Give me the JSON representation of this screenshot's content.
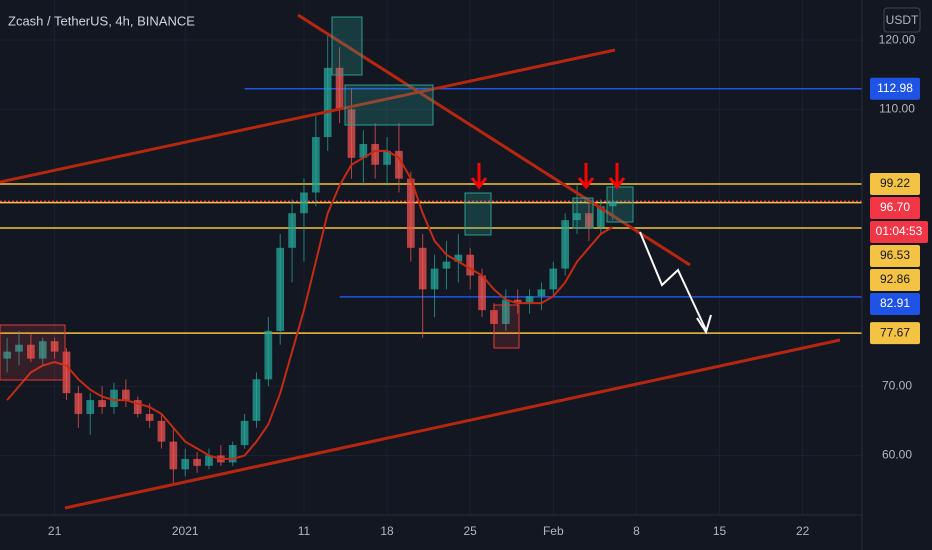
{
  "header": {
    "title": "Zcash / TetherUS, 4h, BINANCE",
    "currency": "USDT"
  },
  "chart_data": {
    "type": "candlestick",
    "xlim": [
      -4.6,
      68.0
    ],
    "ylim": [
      51.4,
      125.8
    ],
    "xticks": [
      {
        "value": 0,
        "label": "21"
      },
      {
        "value": 11,
        "label": "2021"
      },
      {
        "value": 21,
        "label": "11"
      },
      {
        "value": 28,
        "label": "18"
      },
      {
        "value": 35,
        "label": "25"
      },
      {
        "value": 42,
        "label": "Feb"
      },
      {
        "value": 49,
        "label": "8"
      },
      {
        "value": 56,
        "label": "15"
      },
      {
        "value": 63,
        "label": "22"
      }
    ],
    "yticks": [
      {
        "value": 120,
        "label": "120.00"
      },
      {
        "value": 110,
        "label": "110.00"
      },
      {
        "value": 70,
        "label": "70.00"
      },
      {
        "value": 60,
        "label": "60.00"
      }
    ],
    "up_color": "#26a69a",
    "down_color": "#ef5350",
    "x": [
      -4,
      -3,
      -2,
      -1,
      0,
      1,
      2,
      3,
      4,
      5,
      6,
      7,
      8,
      9,
      10,
      11,
      12,
      13,
      14,
      15,
      16,
      17,
      18,
      19,
      20,
      21,
      22,
      23,
      24,
      25,
      26,
      27,
      28,
      29,
      30,
      31,
      32,
      33,
      34,
      35,
      36,
      37,
      38,
      39,
      40,
      41,
      42,
      43,
      44,
      45,
      46,
      47
    ],
    "open": [
      74,
      75,
      76,
      74,
      76.5,
      75,
      69,
      66,
      68,
      67,
      69.5,
      68,
      66,
      65,
      62,
      58,
      59.5,
      58.5,
      60,
      59,
      61.5,
      65,
      71,
      78,
      90,
      95,
      98,
      106,
      116,
      110,
      103,
      105,
      102,
      104,
      100,
      90,
      84,
      87,
      88,
      89,
      86,
      81,
      79,
      82.5,
      82,
      83,
      84,
      87,
      94,
      95,
      93,
      96
    ],
    "high": [
      77,
      78,
      77.5,
      77,
      77,
      75.5,
      70,
      69,
      70,
      70.5,
      71,
      68.5,
      67.5,
      66,
      64,
      61,
      60.5,
      61,
      61.5,
      62,
      66,
      72,
      80,
      92,
      97,
      100,
      109,
      121,
      119,
      113,
      107,
      108,
      106,
      108,
      101,
      92,
      89,
      91,
      92,
      90,
      87,
      82,
      84,
      84,
      84,
      85,
      88,
      95,
      99,
      97,
      97,
      99
    ],
    "low": [
      72,
      73,
      73.5,
      73,
      74,
      68,
      64,
      63,
      66,
      66,
      67,
      65.5,
      64,
      61,
      56,
      57,
      57.5,
      58,
      58.5,
      58.5,
      61,
      64,
      70,
      76,
      85,
      88,
      96,
      104,
      108,
      100,
      99,
      100,
      99,
      98,
      88,
      77,
      80,
      84,
      85,
      84,
      80,
      75.5,
      78,
      80.5,
      80.5,
      81,
      83,
      86,
      92,
      91,
      92,
      94
    ],
    "close": [
      75,
      76,
      74,
      76.5,
      75,
      69,
      66,
      68,
      67,
      69.5,
      68,
      66,
      65,
      62,
      58,
      59.5,
      58.5,
      60,
      59,
      61.5,
      65,
      71,
      78,
      90,
      95,
      98,
      106,
      116,
      110,
      103,
      105,
      102,
      104,
      100,
      90,
      84,
      87,
      88,
      89,
      86,
      81,
      79,
      82.5,
      82,
      83,
      84,
      87,
      94,
      95,
      93,
      96,
      96.7
    ],
    "ma": {
      "color": "#c42b12",
      "values": [
        68,
        70,
        72,
        73,
        73.5,
        73,
        71,
        69.5,
        68.5,
        68,
        68,
        67.5,
        67,
        66,
        64,
        62,
        61,
        60,
        59.5,
        59.5,
        60,
        62,
        64.5,
        69,
        75,
        81,
        88,
        95,
        99,
        102,
        103,
        104,
        104,
        103,
        100,
        95,
        91,
        89,
        88,
        87,
        86,
        84,
        82.5,
        82,
        82,
        82,
        83,
        85,
        88,
        90,
        92,
        93
      ]
    },
    "levels": [
      {
        "value": 112.98,
        "label": "112.98",
        "color": "#1e53e5",
        "from": 16
      },
      {
        "value": 99.22,
        "label": "99.22",
        "color": "#f5c344",
        "from": -4.6
      },
      {
        "value": 96.7,
        "label": "96.70",
        "color": "#f23645",
        "from": -4.6,
        "countdown": "01:04:53"
      },
      {
        "value": 96.53,
        "label": "96.53",
        "color": "#f5c344",
        "from": -4.6
      },
      {
        "value": 92.86,
        "label": "92.86",
        "color": "#f5c344",
        "from": -4.6
      },
      {
        "value": 82.91,
        "label": "82.91",
        "color": "#1e53e5",
        "from": 24
      },
      {
        "value": 77.67,
        "label": "77.67",
        "color": "#f5c344",
        "from": -4.6
      }
    ]
  }
}
